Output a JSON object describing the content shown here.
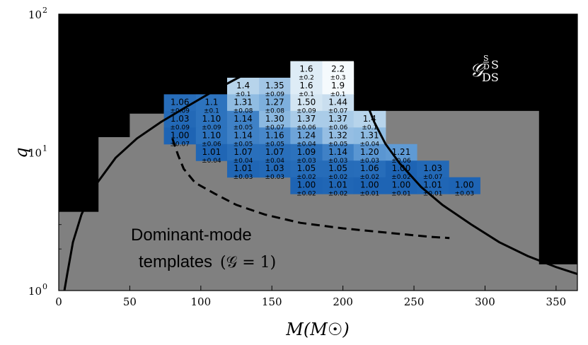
{
  "chart_data": {
    "type": "heatmap",
    "title": "",
    "xlabel": "M(M☉)",
    "ylabel": "q",
    "xlim": [
      0,
      365
    ],
    "ylim": [
      1,
      100
    ],
    "yscale": "log",
    "x_ticks": [
      0,
      50,
      100,
      150,
      200,
      250,
      300,
      350
    ],
    "x_tick_labels": [
      "0",
      "50",
      "100",
      "150",
      "200",
      "250",
      "300",
      "350"
    ],
    "y_ticks": [
      1,
      10,
      100
    ],
    "y_tick_labels": [
      "10",
      "10",
      "10"
    ],
    "y_tick_exponents": [
      "0",
      "1",
      "2"
    ],
    "colorbar_symbol": "𝒢",
    "colorbar_sup": "S",
    "colorbar_sub": "D",
    "colorbar_after": "S",
    "colorbar_subscript": "DS",
    "annotation_line1": "Dominant-mode",
    "annotation_line2": "templates",
    "annotation_formula": "(𝒢 = 1)",
    "region_colors": {
      "background": "#000000",
      "dominant_region": "#808080",
      "curve": "#000000"
    },
    "grid_x_edges": [
      74,
      96.5,
      118.5,
      141,
      163,
      185.5,
      207.5,
      230,
      252,
      274.5,
      296.5
    ],
    "grid_log_q_edges": [
      0.34,
      0.46,
      0.58,
      0.7,
      0.82,
      0.94,
      1.06,
      1.18,
      1.3,
      1.42,
      1.54,
      1.66,
      1.78
    ],
    "cells": [
      {
        "col": 4,
        "row": 10,
        "value": "1.6",
        "error": "±0.2"
      },
      {
        "col": 5,
        "row": 10,
        "value": "2.2",
        "error": "±0.3"
      },
      {
        "col": 2,
        "row": 9,
        "value": "1.4",
        "error": "±0.1"
      },
      {
        "col": 3,
        "row": 9,
        "value": "1.35",
        "error": "±0.09"
      },
      {
        "col": 4,
        "row": 9,
        "value": "1.6",
        "error": "±0.1"
      },
      {
        "col": 5,
        "row": 9,
        "value": "1.9",
        "error": "±0.1"
      },
      {
        "col": 0,
        "row": 8,
        "value": "1.06",
        "error": "±0.09"
      },
      {
        "col": 1,
        "row": 8,
        "value": "1.1",
        "error": "±0.1"
      },
      {
        "col": 2,
        "row": 8,
        "value": "1.31",
        "error": "±0.08"
      },
      {
        "col": 3,
        "row": 8,
        "value": "1.27",
        "error": "±0.08"
      },
      {
        "col": 4,
        "row": 8,
        "value": "1.50",
        "error": "±0.09"
      },
      {
        "col": 5,
        "row": 8,
        "value": "1.44",
        "error": "±0.07"
      },
      {
        "col": 0,
        "row": 7,
        "value": "1.03",
        "error": "±0.09"
      },
      {
        "col": 1,
        "row": 7,
        "value": "1.10",
        "error": "±0.09"
      },
      {
        "col": 2,
        "row": 7,
        "value": "1.14",
        "error": "±0.05"
      },
      {
        "col": 3,
        "row": 7,
        "value": "1.30",
        "error": "±0.07"
      },
      {
        "col": 4,
        "row": 7,
        "value": "1.37",
        "error": "±0.06"
      },
      {
        "col": 5,
        "row": 7,
        "value": "1.37",
        "error": "±0.06"
      },
      {
        "col": 6,
        "row": 7,
        "value": "1.4",
        "error": "±0.1"
      },
      {
        "col": 0,
        "row": 6,
        "value": "1.00",
        "error": "±0.07"
      },
      {
        "col": 1,
        "row": 6,
        "value": "1.10",
        "error": "±0.06"
      },
      {
        "col": 2,
        "row": 6,
        "value": "1.14",
        "error": "±0.05"
      },
      {
        "col": 3,
        "row": 6,
        "value": "1.16",
        "error": "±0.05"
      },
      {
        "col": 4,
        "row": 6,
        "value": "1.24",
        "error": "±0.04"
      },
      {
        "col": 5,
        "row": 6,
        "value": "1.32",
        "error": "±0.05"
      },
      {
        "col": 6,
        "row": 6,
        "value": "1.31",
        "error": "±0.04"
      },
      {
        "col": 1,
        "row": 5,
        "value": "1.01",
        "error": "±0.04"
      },
      {
        "col": 2,
        "row": 5,
        "value": "1.07",
        "error": "±0.04"
      },
      {
        "col": 3,
        "row": 5,
        "value": "1.07",
        "error": "±0.04"
      },
      {
        "col": 4,
        "row": 5,
        "value": "1.09",
        "error": "±0.03"
      },
      {
        "col": 5,
        "row": 5,
        "value": "1.14",
        "error": "±0.03"
      },
      {
        "col": 6,
        "row": 5,
        "value": "1.20",
        "error": "±0.03"
      },
      {
        "col": 7,
        "row": 5,
        "value": "1.21",
        "error": "±0.06"
      },
      {
        "col": 2,
        "row": 4,
        "value": "1.01",
        "error": "±0.03"
      },
      {
        "col": 3,
        "row": 4,
        "value": "1.03",
        "error": "±0.03"
      },
      {
        "col": 4,
        "row": 4,
        "value": "1.05",
        "error": "±0.02"
      },
      {
        "col": 5,
        "row": 4,
        "value": "1.05",
        "error": "±0.02"
      },
      {
        "col": 6,
        "row": 4,
        "value": "1.06",
        "error": "±0.02"
      },
      {
        "col": 7,
        "row": 4,
        "value": "1.00",
        "error": "±0.02"
      },
      {
        "col": 8,
        "row": 4,
        "value": "1.03",
        "error": "±0.07"
      },
      {
        "col": 4,
        "row": 3,
        "value": "1.00",
        "error": "±0.02"
      },
      {
        "col": 5,
        "row": 3,
        "value": "1.01",
        "error": "±0.02"
      },
      {
        "col": 6,
        "row": 3,
        "value": "1.00",
        "error": "±0.01"
      },
      {
        "col": 7,
        "row": 3,
        "value": "1.00",
        "error": "±0.01"
      },
      {
        "col": 8,
        "row": 3,
        "value": "1.01",
        "error": "±0.01"
      },
      {
        "col": 9,
        "row": 3,
        "value": "1.00",
        "error": "±0.03"
      }
    ],
    "gray_region_steps": [
      [
        0,
        0.57
      ],
      [
        28,
        0.57
      ],
      [
        28,
        1.11
      ],
      [
        50,
        1.11
      ],
      [
        50,
        1.28
      ],
      [
        74,
        1.28
      ],
      [
        74,
        1.3
      ],
      [
        338,
        1.3
      ],
      [
        338,
        0.19
      ],
      [
        365,
        0.19
      ]
    ],
    "black_steps_left": [
      [
        0,
        0.57
      ],
      [
        28,
        0.57
      ],
      [
        28,
        1.11
      ],
      [
        50,
        1.11
      ],
      [
        50,
        1.18
      ],
      [
        72,
        1.18
      ],
      [
        72,
        1.28
      ]
    ],
    "solid_curve_left": [
      [
        4,
        0.0
      ],
      [
        6,
        0.12
      ],
      [
        10,
        0.35
      ],
      [
        16,
        0.55
      ],
      [
        25,
        0.75
      ],
      [
        40,
        0.96
      ],
      [
        55,
        1.1
      ],
      [
        72,
        1.22
      ],
      [
        90,
        1.33
      ],
      [
        110,
        1.45
      ],
      [
        130,
        1.56
      ],
      [
        150,
        1.66
      ],
      [
        170,
        1.74
      ],
      [
        185,
        1.79
      ],
      [
        204,
        1.82
      ]
    ],
    "solid_curve_right": [
      [
        204,
        1.82
      ],
      [
        210,
        1.6
      ],
      [
        215,
        1.4
      ],
      [
        222,
        1.22
      ],
      [
        230,
        1.06
      ],
      [
        240,
        0.92
      ],
      [
        255,
        0.75
      ],
      [
        270,
        0.62
      ],
      [
        290,
        0.48
      ],
      [
        310,
        0.35
      ],
      [
        330,
        0.25
      ],
      [
        350,
        0.17
      ],
      [
        365,
        0.12
      ]
    ],
    "dashed_curve": [
      [
        80,
        1.1
      ],
      [
        84,
        0.98
      ],
      [
        88,
        0.88
      ],
      [
        96,
        0.78
      ],
      [
        110,
        0.7
      ],
      [
        125,
        0.62
      ],
      [
        145,
        0.55
      ],
      [
        170,
        0.49
      ],
      [
        200,
        0.45
      ],
      [
        230,
        0.42
      ],
      [
        260,
        0.39
      ],
      [
        275,
        0.38
      ]
    ]
  }
}
